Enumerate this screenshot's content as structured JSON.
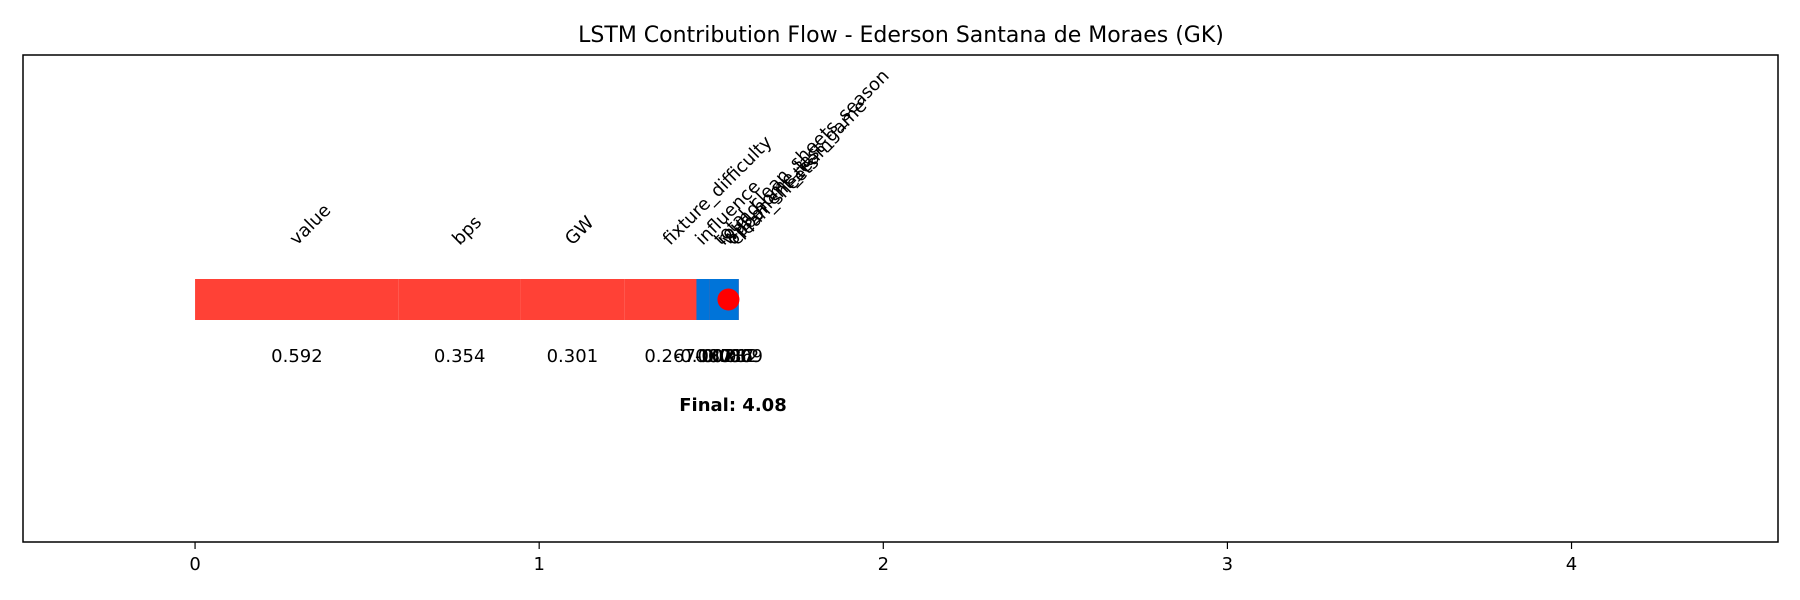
{
  "chart_data": {
    "type": "bar",
    "title": "LSTM Contribution Flow - Ederson Santana de Moraes (GK)",
    "xlabel": "",
    "ylabel": "",
    "xlim": [
      -0.5,
      4.6
    ],
    "ylim": [
      -3,
      3
    ],
    "x_ticks": [
      "0",
      "1",
      "2",
      "3",
      "4"
    ],
    "grid": false,
    "legend": "none",
    "segments": [
      {
        "feature": "value",
        "value": 0.592,
        "label": "0.592",
        "color": "#ff4136"
      },
      {
        "feature": "bps",
        "value": 0.354,
        "label": "0.354",
        "color": "#ff4136"
      },
      {
        "feature": "GW",
        "value": 0.301,
        "label": "0.301",
        "color": "#ff4136"
      },
      {
        "feature": "fixture_difficulty",
        "value": 0.267,
        "label": "0.267",
        "color": "#ff4136"
      },
      {
        "feature": "total_clean_sheets_season",
        "value": 0.028,
        "label": "0.028",
        "color": "#ff4136"
      },
      {
        "feature": "was_home_last_game",
        "value": 0.017,
        "label": "0.017",
        "color": "#ff4136"
      },
      {
        "feature": "opponent_team",
        "value": 0.012,
        "label": "0.012",
        "color": "#ff4136"
      },
      {
        "feature": "clean_sheets",
        "value": 0.009,
        "label": "0.009",
        "color": "#ff4136"
      },
      {
        "feature": "round",
        "value": -0.086,
        "label": "-0.086",
        "color": "#0074d9"
      },
      {
        "feature": "influence",
        "value": -0.037,
        "label": "-0.037",
        "color": "#0074d9"
      }
    ],
    "final_marker": {
      "x": 1.55,
      "color": "#ff0000"
    },
    "final_label": "Final: 4.08",
    "colors": {
      "positive": "#ff4136",
      "negative": "#0074d9",
      "marker": "#ff0000"
    }
  }
}
